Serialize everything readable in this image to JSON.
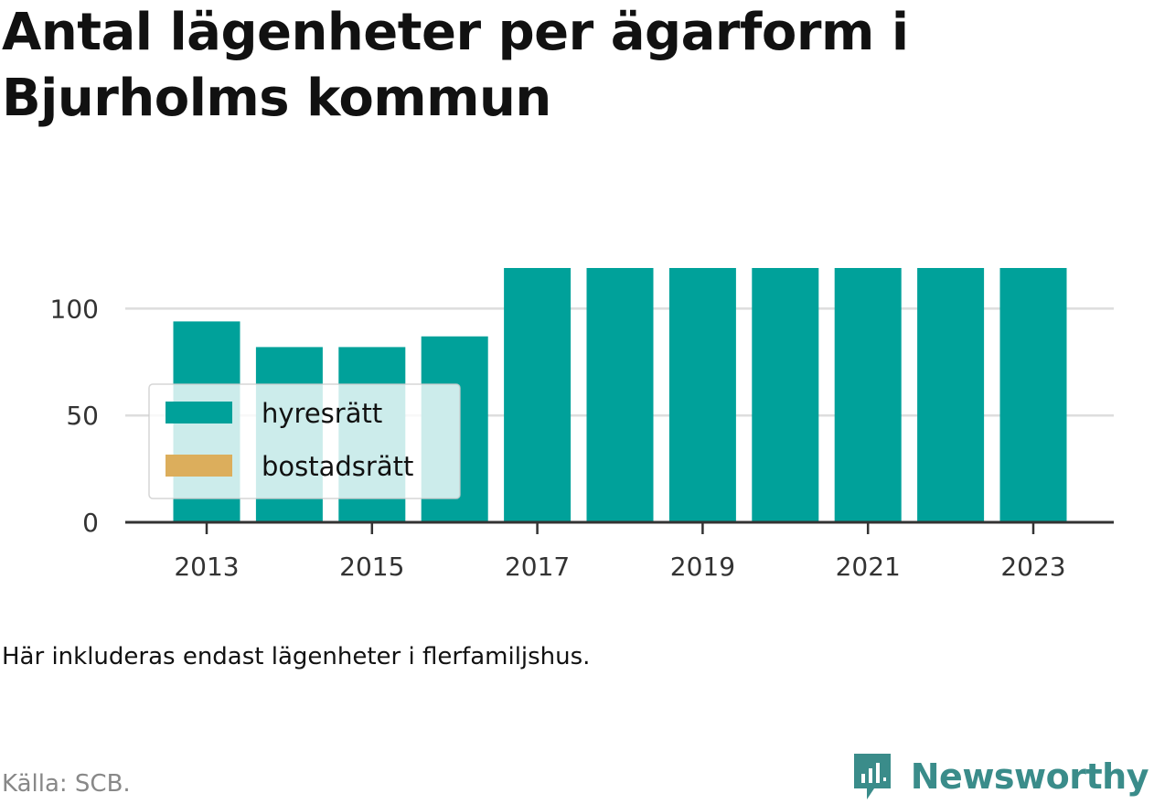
{
  "title": "Antal lägenheter per ägarform i Bjurholms kommun",
  "note": "Här inkluderas endast lägenheter i flerfamiljshus.",
  "source": "Källa: SCB.",
  "brand": {
    "name": "Newsworthy",
    "icon": "newsworthy-logo-icon",
    "color": "#3a8c8a"
  },
  "chart_data": {
    "type": "bar",
    "stacked": true,
    "categories": [
      "2013",
      "2014",
      "2015",
      "2016",
      "2017",
      "2018",
      "2019",
      "2020",
      "2021",
      "2022",
      "2023"
    ],
    "series": [
      {
        "name": "hyresrätt",
        "color": "#00a19a",
        "values": [
          94,
          82,
          82,
          87,
          119,
          119,
          119,
          119,
          119,
          119,
          119
        ]
      },
      {
        "name": "bostadsrätt",
        "color": "#dcae5c",
        "values": [
          0,
          0,
          0,
          0,
          0,
          0,
          0,
          0,
          0,
          0,
          0
        ]
      }
    ],
    "x_tick_labels": [
      "2013",
      "2015",
      "2017",
      "2019",
      "2021",
      "2023"
    ],
    "y_ticks": [
      0,
      50,
      100
    ],
    "ylim": [
      0,
      119
    ],
    "grid": true,
    "legend_position": "bottom-left"
  }
}
